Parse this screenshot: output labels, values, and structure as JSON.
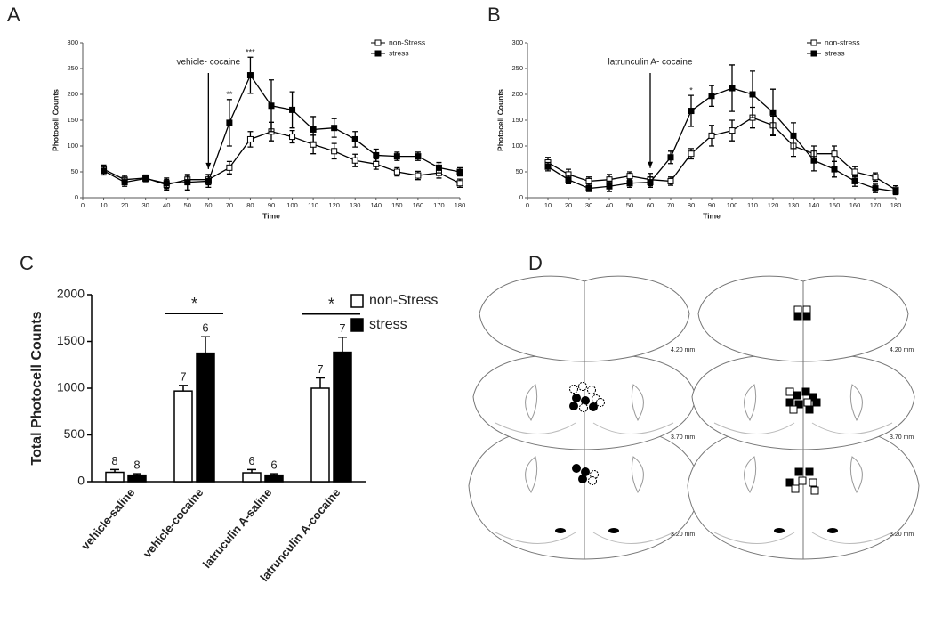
{
  "chart_data": [
    {
      "type": "line",
      "panel": "A",
      "xlabel": "Time",
      "ylabel": "Photocell Counts",
      "x": [
        10,
        20,
        30,
        40,
        50,
        60,
        70,
        80,
        90,
        100,
        110,
        120,
        130,
        140,
        150,
        160,
        170,
        180
      ],
      "xlim": [
        0,
        180
      ],
      "xticks": [
        0,
        10,
        20,
        30,
        40,
        50,
        60,
        70,
        80,
        90,
        100,
        110,
        120,
        130,
        140,
        150,
        160,
        170,
        180
      ],
      "ylim": [
        0,
        300
      ],
      "yticks": [
        0,
        50,
        100,
        150,
        200,
        250,
        300
      ],
      "series": [
        {
          "name": "non-Stress",
          "color": "#000000",
          "fill": "#ffffff",
          "values": [
            55,
            35,
            38,
            25,
            35,
            35,
            58,
            113,
            128,
            118,
            103,
            90,
            72,
            65,
            50,
            43,
            48,
            28
          ],
          "errors": [
            8,
            8,
            6,
            10,
            8,
            10,
            12,
            15,
            18,
            12,
            18,
            15,
            12,
            10,
            8,
            8,
            10,
            8
          ]
        },
        {
          "name": "stress",
          "color": "#000000",
          "fill": "#000000",
          "values": [
            52,
            30,
            37,
            28,
            30,
            32,
            145,
            237,
            178,
            170,
            132,
            135,
            113,
            82,
            80,
            80,
            58,
            50
          ],
          "errors": [
            8,
            8,
            6,
            10,
            15,
            12,
            45,
            35,
            50,
            35,
            25,
            18,
            15,
            12,
            8,
            8,
            10,
            8
          ]
        }
      ],
      "annotations": [
        {
          "text": "vehicle- cocaine",
          "x": 60,
          "arrow": true
        },
        {
          "text": "**",
          "x": 70
        },
        {
          "text": "***",
          "x": 80
        }
      ]
    },
    {
      "type": "line",
      "panel": "B",
      "xlabel": "Time",
      "ylabel": "Photocell Counts",
      "x": [
        10,
        20,
        30,
        40,
        50,
        60,
        70,
        80,
        90,
        100,
        110,
        120,
        130,
        140,
        150,
        160,
        170,
        180
      ],
      "xlim": [
        0,
        180
      ],
      "xticks": [
        0,
        10,
        20,
        30,
        40,
        50,
        60,
        70,
        80,
        90,
        100,
        110,
        120,
        130,
        140,
        150,
        160,
        170,
        180
      ],
      "ylim": [
        0,
        300
      ],
      "yticks": [
        0,
        50,
        100,
        150,
        200,
        250,
        300
      ],
      "series": [
        {
          "name": "non-stress",
          "color": "#000000",
          "fill": "#ffffff",
          "values": [
            68,
            45,
            32,
            35,
            42,
            35,
            32,
            85,
            120,
            130,
            155,
            140,
            100,
            85,
            85,
            50,
            40,
            15
          ],
          "errors": [
            10,
            10,
            8,
            10,
            8,
            12,
            8,
            10,
            20,
            20,
            20,
            18,
            20,
            15,
            15,
            10,
            8,
            8
          ]
        },
        {
          "name": "stress",
          "color": "#000000",
          "fill": "#000000",
          "values": [
            60,
            35,
            18,
            22,
            28,
            30,
            78,
            168,
            197,
            212,
            200,
            165,
            120,
            72,
            55,
            32,
            18,
            12
          ],
          "errors": [
            8,
            8,
            6,
            10,
            8,
            10,
            12,
            30,
            20,
            45,
            45,
            45,
            25,
            20,
            15,
            10,
            8,
            6
          ]
        }
      ],
      "annotations": [
        {
          "text": "latrunculin A- cocaine",
          "x": 60,
          "arrow": true
        },
        {
          "text": "*",
          "x": 80
        }
      ]
    },
    {
      "type": "bar",
      "panel": "C",
      "ylabel": "Total Photocell Counts",
      "categories": [
        "vehicle-saline",
        "vehicle-cocaine",
        "latruculin A-saline",
        "latrunculin A-cocaine"
      ],
      "ylim": [
        0,
        2000
      ],
      "yticks": [
        0,
        500,
        1000,
        1500,
        2000
      ],
      "series": [
        {
          "name": "non-Stress",
          "color": "#000000",
          "fill": "#ffffff",
          "values": [
            100,
            970,
            95,
            1000
          ],
          "errors": [
            30,
            60,
            35,
            110
          ],
          "n_labels": [
            8,
            7,
            6,
            7
          ]
        },
        {
          "name": "stress",
          "color": "#000000",
          "fill": "#000000",
          "values": [
            70,
            1375,
            70,
            1385
          ],
          "errors": [
            15,
            175,
            15,
            160
          ],
          "n_labels": [
            8,
            6,
            6,
            7
          ]
        }
      ],
      "annotations": [
        {
          "text": "*",
          "category": 1
        },
        {
          "text": "*",
          "category": 3
        }
      ]
    }
  ],
  "diagram": {
    "panel": "D",
    "levels": [
      "4.20 mm",
      "3.70 mm",
      "3.20 mm"
    ]
  }
}
